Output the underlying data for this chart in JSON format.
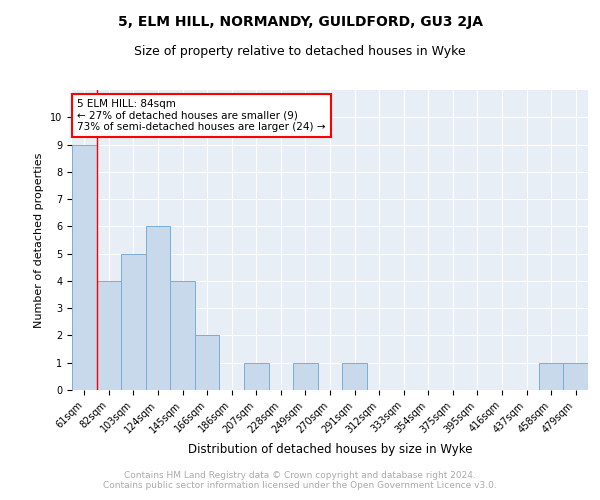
{
  "title": "5, ELM HILL, NORMANDY, GUILDFORD, GU3 2JA",
  "subtitle": "Size of property relative to detached houses in Wyke",
  "xlabel": "Distribution of detached houses by size in Wyke",
  "ylabel": "Number of detached properties",
  "categories": [
    "61sqm",
    "82sqm",
    "103sqm",
    "124sqm",
    "145sqm",
    "166sqm",
    "186sqm",
    "207sqm",
    "228sqm",
    "249sqm",
    "270sqm",
    "291sqm",
    "312sqm",
    "333sqm",
    "354sqm",
    "375sqm",
    "395sqm",
    "416sqm",
    "437sqm",
    "458sqm",
    "479sqm"
  ],
  "values": [
    9,
    4,
    5,
    6,
    4,
    2,
    0,
    1,
    0,
    1,
    0,
    1,
    0,
    0,
    0,
    0,
    0,
    0,
    0,
    1,
    1
  ],
  "bar_color": "#c9d9ec",
  "bar_edge_color": "#7aaed6",
  "background_color": "#e8eef5",
  "grid_color": "#ffffff",
  "red_line_after_bar": 0,
  "annotation_text": "5 ELM HILL: 84sqm\n← 27% of detached houses are smaller (9)\n73% of semi-detached houses are larger (24) →",
  "annotation_box_color": "white",
  "annotation_box_edge": "red",
  "ylim": [
    0,
    11
  ],
  "yticks": [
    0,
    1,
    2,
    3,
    4,
    5,
    6,
    7,
    8,
    9,
    10,
    11
  ],
  "footnote": "Contains HM Land Registry data © Crown copyright and database right 2024.\nContains public sector information licensed under the Open Government Licence v3.0.",
  "footnote_color": "#aaaaaa",
  "title_fontsize": 10,
  "subtitle_fontsize": 9,
  "xlabel_fontsize": 8.5,
  "ylabel_fontsize": 8,
  "tick_fontsize": 7,
  "footnote_fontsize": 6.5
}
